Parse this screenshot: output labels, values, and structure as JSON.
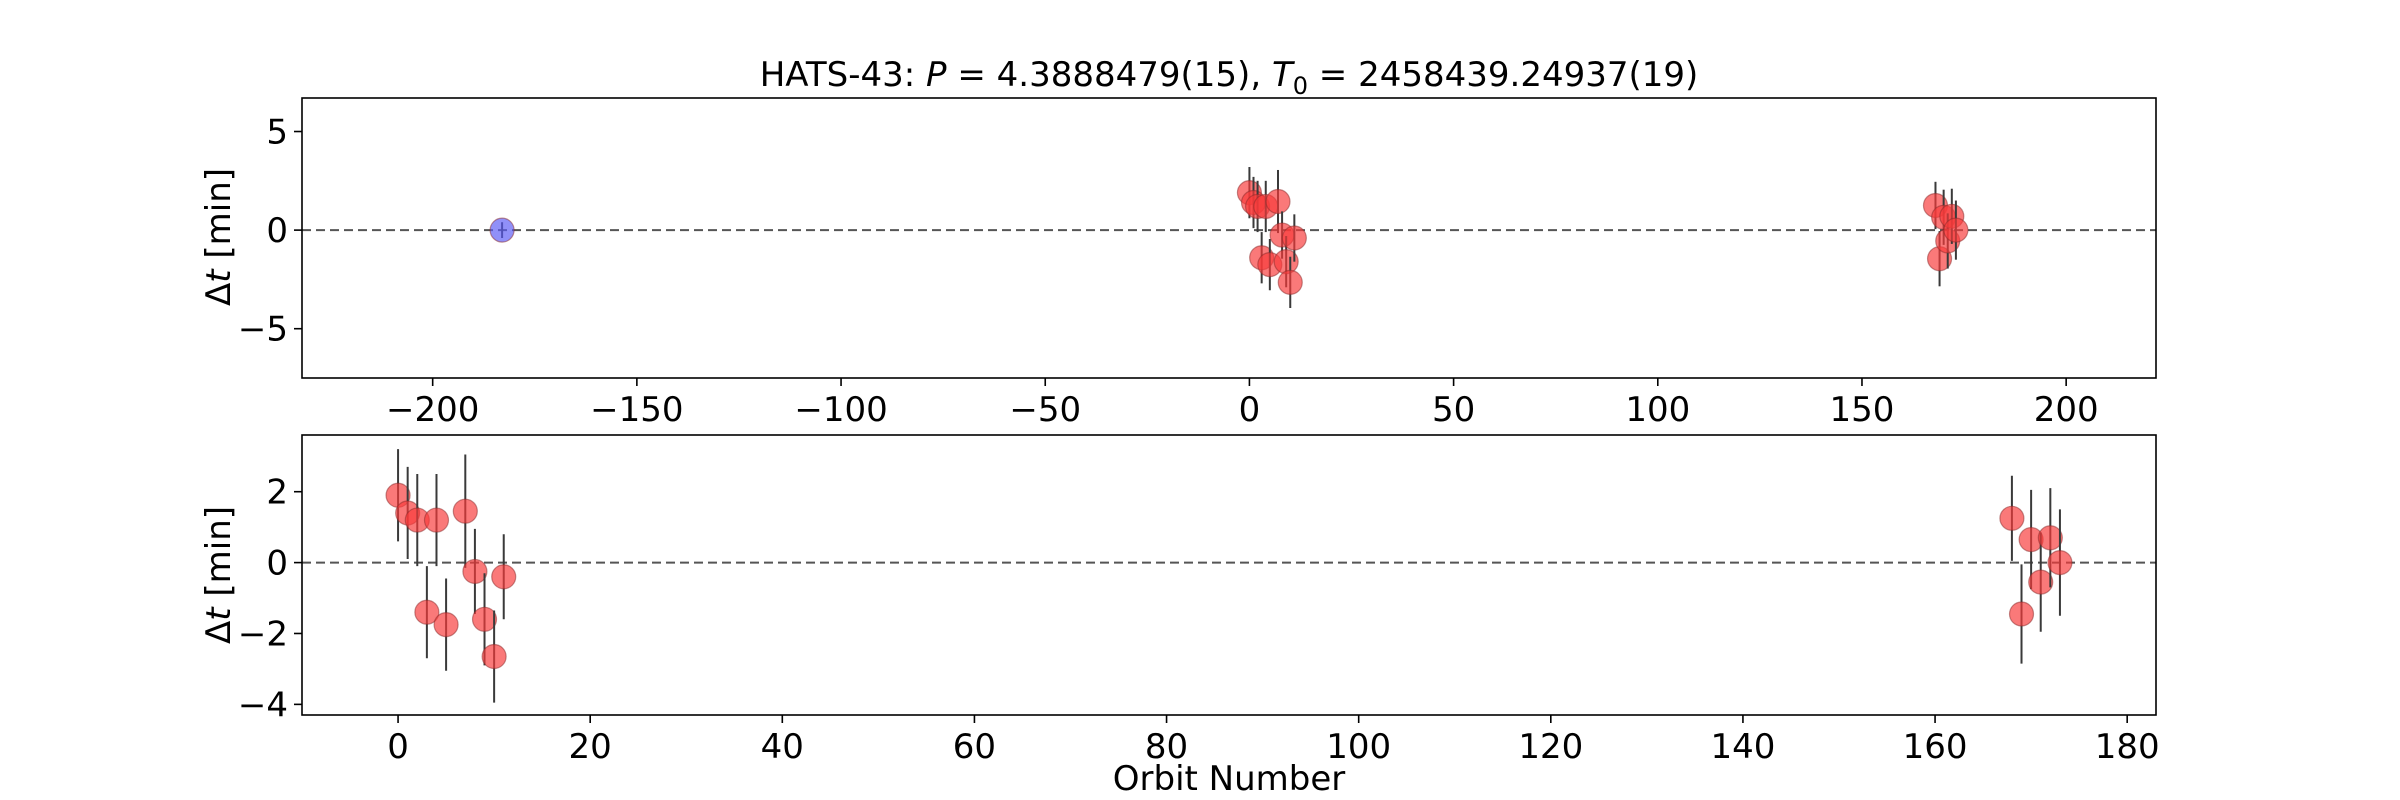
{
  "chart_data": [
    {
      "type": "scatter",
      "title": "HATS-43: P = 4.3888479(15), T0 = 2458439.24937(19)",
      "title_parts": {
        "name": "HATS-43: ",
        "p_symbol": "P",
        "p_value": " = 4.3888479(15), ",
        "t_symbol": "T",
        "t_subscript": "0",
        "t_value": " = 2458439.24937(19)"
      },
      "xlabel": "",
      "ylabel": "Δt [min]",
      "ylabel_parts": {
        "delta": "Δ",
        "t": "t",
        "unit": " [min]"
      },
      "xlim": [
        -232,
        222
      ],
      "ylim": [
        -7.5,
        6.7
      ],
      "xticks": [
        -200,
        -150,
        -100,
        -50,
        0,
        50,
        100,
        150,
        200
      ],
      "xtick_labels": [
        "−200",
        "−150",
        "−100",
        "−50",
        "0",
        "50",
        "100",
        "150",
        "200"
      ],
      "yticks": [
        5,
        0,
        -5
      ],
      "ytick_labels": [
        "5",
        "0",
        "−5"
      ],
      "reference_line": {
        "y": 0,
        "style": "dashed",
        "color": "#555555"
      },
      "grid": false,
      "series": [
        {
          "color": "#5b5bf5",
          "points": [
            {
              "x": -183,
              "y": 0.0,
              "err": 0.4
            }
          ]
        },
        {
          "color": "#f83a3a",
          "points": [
            {
              "x": 0,
              "y": 1.9,
              "err": 1.3
            },
            {
              "x": 1,
              "y": 1.4,
              "err": 1.3
            },
            {
              "x": 2,
              "y": 1.2,
              "err": 1.3
            },
            {
              "x": 3,
              "y": -1.4,
              "err": 1.3
            },
            {
              "x": 4,
              "y": 1.2,
              "err": 1.3
            },
            {
              "x": 5,
              "y": -1.75,
              "err": 1.3
            },
            {
              "x": 7,
              "y": 1.45,
              "err": 1.6
            },
            {
              "x": 8,
              "y": -0.25,
              "err": 1.2
            },
            {
              "x": 9,
              "y": -1.6,
              "err": 1.3
            },
            {
              "x": 10,
              "y": -2.65,
              "err": 1.3
            },
            {
              "x": 11,
              "y": -0.4,
              "err": 1.2
            },
            {
              "x": 168,
              "y": 1.25,
              "err": 1.2
            },
            {
              "x": 169,
              "y": -1.45,
              "err": 1.4
            },
            {
              "x": 170,
              "y": 0.65,
              "err": 1.4
            },
            {
              "x": 171,
              "y": -0.55,
              "err": 1.4
            },
            {
              "x": 172,
              "y": 0.7,
              "err": 1.4
            },
            {
              "x": 173,
              "y": 0.0,
              "err": 1.5
            }
          ]
        }
      ]
    },
    {
      "type": "scatter",
      "title": "",
      "xlabel": "Orbit Number",
      "ylabel": "Δt [min]",
      "ylabel_parts": {
        "delta": "Δ",
        "t": "t",
        "unit": " [min]"
      },
      "xlim": [
        -10,
        183
      ],
      "ylim": [
        -4.3,
        3.6
      ],
      "xticks": [
        0,
        20,
        40,
        60,
        80,
        100,
        120,
        140,
        160,
        180
      ],
      "xtick_labels": [
        "0",
        "20",
        "40",
        "60",
        "80",
        "100",
        "120",
        "140",
        "160",
        "180"
      ],
      "yticks": [
        2,
        0,
        -2,
        -4
      ],
      "ytick_labels": [
        "2",
        "0",
        "−2",
        "−4"
      ],
      "reference_line": {
        "y": 0,
        "style": "dashed",
        "color": "#555555"
      },
      "grid": false,
      "series": [
        {
          "color": "#f83a3a",
          "points": [
            {
              "x": 0,
              "y": 1.9,
              "err": 1.3
            },
            {
              "x": 1,
              "y": 1.4,
              "err": 1.3
            },
            {
              "x": 2,
              "y": 1.2,
              "err": 1.3
            },
            {
              "x": 3,
              "y": -1.4,
              "err": 1.3
            },
            {
              "x": 4,
              "y": 1.2,
              "err": 1.3
            },
            {
              "x": 5,
              "y": -1.75,
              "err": 1.3
            },
            {
              "x": 7,
              "y": 1.45,
              "err": 1.6
            },
            {
              "x": 8,
              "y": -0.25,
              "err": 1.2
            },
            {
              "x": 9,
              "y": -1.6,
              "err": 1.3
            },
            {
              "x": 10,
              "y": -2.65,
              "err": 1.3
            },
            {
              "x": 11,
              "y": -0.4,
              "err": 1.2
            },
            {
              "x": 168,
              "y": 1.25,
              "err": 1.2
            },
            {
              "x": 169,
              "y": -1.45,
              "err": 1.4
            },
            {
              "x": 170,
              "y": 0.65,
              "err": 1.4
            },
            {
              "x": 171,
              "y": -0.55,
              "err": 1.4
            },
            {
              "x": 172,
              "y": 0.7,
              "err": 1.4
            },
            {
              "x": 173,
              "y": 0.0,
              "err": 1.5
            }
          ]
        }
      ]
    }
  ]
}
